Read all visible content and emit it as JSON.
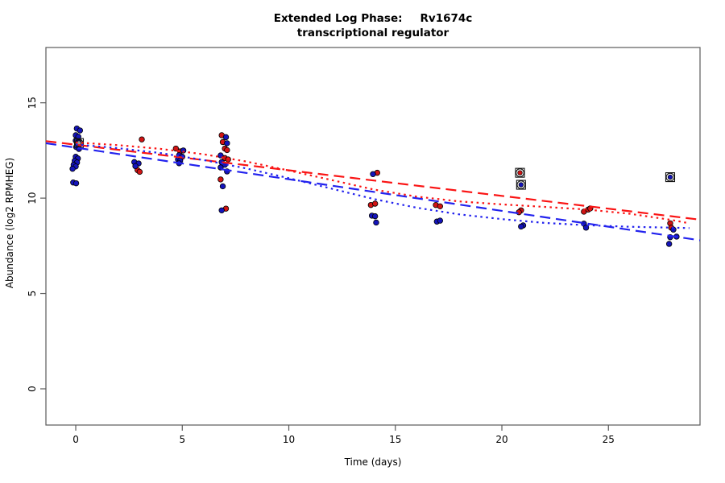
{
  "title": {
    "left": "Extended Log Phase:",
    "gene": "Rv1674c",
    "line2": "transcriptional regulator"
  },
  "chart_data": {
    "type": "scatter",
    "title": "Extended Log Phase: Rv1674c transcriptional regulator",
    "xlabel": "Time  (days)",
    "ylabel": "Abundance  (log2 RPMHEG)",
    "xlim": [
      -1.4,
      29.3
    ],
    "ylim": [
      -1.9,
      17.9
    ],
    "xticks": [
      0,
      5,
      10,
      15,
      20,
      25
    ],
    "yticks": [
      0,
      5,
      10,
      15
    ],
    "grid": false,
    "legend": "none",
    "point_colors": {
      "red": "#d11414",
      "blue": "#1414bb",
      "outline": "#000000"
    },
    "line_colors": {
      "red": "#fa1414",
      "blue": "#2222ee"
    },
    "series": [
      {
        "name": "red-points",
        "color_key": "red",
        "points": [
          [
            3.1,
            13.08
          ],
          [
            2.9,
            11.47
          ],
          [
            3.0,
            11.38
          ],
          [
            4.7,
            12.6
          ],
          [
            4.9,
            12.45
          ],
          [
            6.85,
            13.3
          ],
          [
            6.9,
            12.94
          ],
          [
            7.0,
            12.6
          ],
          [
            7.1,
            12.52
          ],
          [
            7.0,
            12.1
          ],
          [
            7.15,
            12.03
          ],
          [
            6.8,
            10.98
          ],
          [
            7.05,
            9.45
          ],
          [
            14.15,
            11.33
          ],
          [
            13.85,
            9.64
          ],
          [
            14.05,
            9.71
          ],
          [
            16.9,
            9.64
          ],
          [
            17.1,
            9.57
          ],
          [
            20.9,
            9.36
          ],
          [
            20.8,
            9.26
          ],
          [
            23.85,
            9.29
          ],
          [
            24.05,
            9.4
          ],
          [
            24.15,
            9.46
          ],
          [
            27.9,
            8.68
          ],
          [
            27.95,
            8.45
          ]
        ]
      },
      {
        "name": "blue-points",
        "color_key": "blue",
        "points": [
          [
            0.05,
            13.65
          ],
          [
            0.2,
            13.55
          ],
          [
            0.0,
            13.3
          ],
          [
            0.12,
            13.22
          ],
          [
            0.0,
            13.02
          ],
          [
            0.15,
            12.92
          ],
          [
            0.02,
            12.68
          ],
          [
            0.15,
            12.58
          ],
          [
            0.0,
            12.17
          ],
          [
            0.1,
            12.08
          ],
          [
            -0.05,
            11.96
          ],
          [
            0.06,
            11.87
          ],
          [
            -0.1,
            11.75
          ],
          [
            0.0,
            11.66
          ],
          [
            -0.15,
            11.54
          ],
          [
            -0.12,
            10.82
          ],
          [
            0.02,
            10.78
          ],
          [
            2.75,
            11.89
          ],
          [
            2.95,
            11.82
          ],
          [
            2.8,
            11.68
          ],
          [
            5.05,
            12.5
          ],
          [
            4.85,
            12.25
          ],
          [
            5.0,
            12.17
          ],
          [
            4.8,
            12.03
          ],
          [
            4.9,
            11.96
          ],
          [
            4.85,
            11.83
          ],
          [
            7.05,
            13.2
          ],
          [
            7.1,
            12.88
          ],
          [
            6.8,
            12.24
          ],
          [
            6.85,
            11.89
          ],
          [
            7.0,
            11.75
          ],
          [
            6.8,
            11.61
          ],
          [
            7.1,
            11.4
          ],
          [
            6.9,
            10.62
          ],
          [
            6.85,
            9.36
          ],
          [
            13.95,
            11.26
          ],
          [
            13.9,
            9.08
          ],
          [
            14.05,
            9.05
          ],
          [
            14.1,
            8.72
          ],
          [
            16.95,
            8.77
          ],
          [
            17.1,
            8.82
          ],
          [
            21.0,
            8.57
          ],
          [
            20.9,
            8.51
          ],
          [
            23.85,
            8.66
          ],
          [
            23.95,
            8.45
          ],
          [
            28.05,
            8.35
          ],
          [
            28.2,
            7.98
          ],
          [
            27.9,
            7.95
          ],
          [
            27.85,
            7.6
          ]
        ]
      }
    ],
    "circled_points": [
      {
        "x": 0.15,
        "y": 12.89,
        "fill": "#9a9a9a"
      },
      {
        "x": 20.85,
        "y": 11.33,
        "fill": "#d11414"
      },
      {
        "x": 20.9,
        "y": 10.7,
        "fill": "#1414bb"
      },
      {
        "x": 27.9,
        "y": 11.1,
        "fill": "#1414bb"
      }
    ],
    "trend_lines": [
      {
        "name": "red-dashed-fit",
        "color_key": "red",
        "dash": "13 7",
        "points": [
          [
            -1.4,
            12.99
          ],
          [
            29.3,
            8.87
          ]
        ]
      },
      {
        "name": "blue-dashed-fit",
        "color_key": "blue",
        "dash": "13 7",
        "points": [
          [
            -1.4,
            12.88
          ],
          [
            29.3,
            7.79
          ]
        ]
      },
      {
        "name": "red-dotted-fit",
        "color_key": "red",
        "dash": "2.5 4.5",
        "points": [
          [
            0,
            12.92
          ],
          [
            2,
            12.78
          ],
          [
            4,
            12.58
          ],
          [
            6,
            12.3
          ],
          [
            8,
            11.92
          ],
          [
            10,
            11.45
          ],
          [
            12,
            10.95
          ],
          [
            14,
            10.45
          ],
          [
            16,
            10.08
          ],
          [
            18,
            9.83
          ],
          [
            20,
            9.67
          ],
          [
            22,
            9.54
          ],
          [
            24,
            9.4
          ],
          [
            26,
            9.18
          ],
          [
            28,
            8.85
          ],
          [
            28.8,
            8.68
          ]
        ]
      },
      {
        "name": "blue-dotted-fit",
        "color_key": "blue",
        "dash": "2.5 4.5",
        "points": [
          [
            0,
            12.82
          ],
          [
            2,
            12.62
          ],
          [
            4,
            12.36
          ],
          [
            6,
            12.0
          ],
          [
            8,
            11.56
          ],
          [
            10,
            11.05
          ],
          [
            12,
            10.5
          ],
          [
            14,
            9.95
          ],
          [
            16,
            9.5
          ],
          [
            18,
            9.15
          ],
          [
            20,
            8.9
          ],
          [
            22,
            8.7
          ],
          [
            24,
            8.58
          ],
          [
            26,
            8.5
          ],
          [
            28,
            8.45
          ],
          [
            28.8,
            8.43
          ]
        ]
      }
    ]
  }
}
